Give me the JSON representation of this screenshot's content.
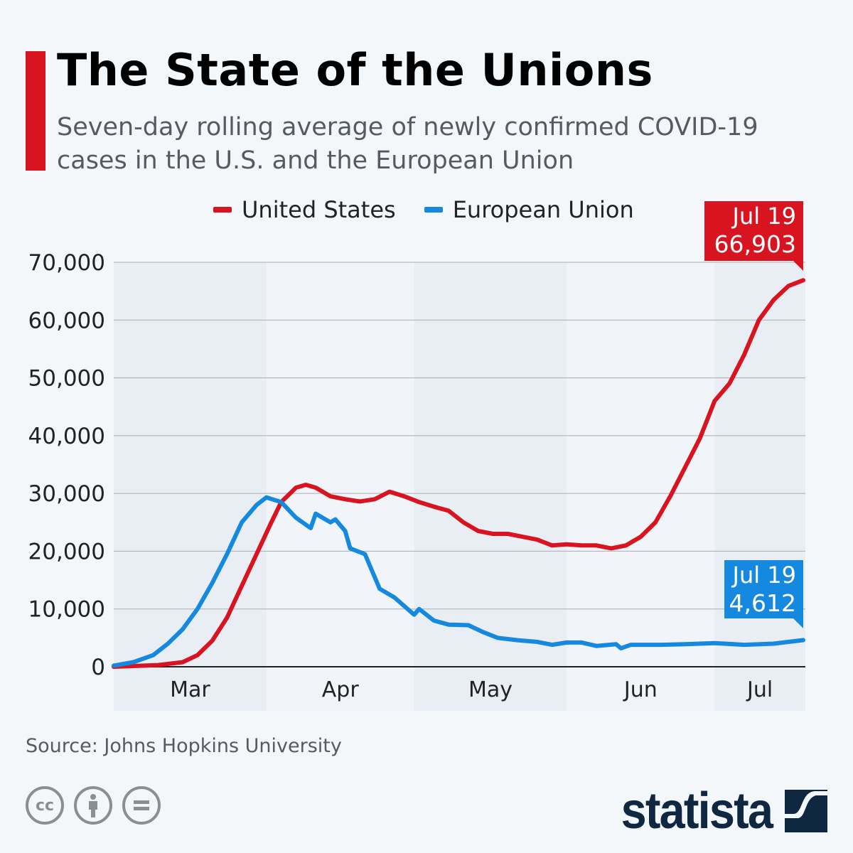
{
  "header": {
    "title": "The State of the Unions",
    "subtitle": "Seven-day rolling average of newly confirmed COVID-19 cases in the U.S. and the European Union"
  },
  "colors": {
    "accent": "#d7141f",
    "us": "#d7141f",
    "eu": "#1588e0",
    "logo": "#0f2740"
  },
  "chart_data": {
    "type": "line",
    "title": "The State of the Unions",
    "subtitle": "Seven-day rolling average of newly confirmed COVID-19 cases in the U.S. and the European Union",
    "ylim": [
      0,
      70000
    ],
    "yticks": [
      0,
      10000,
      20000,
      30000,
      40000,
      50000,
      60000,
      70000
    ],
    "ytick_labels": [
      "0",
      "10,000",
      "20,000",
      "30,000",
      "40,000",
      "50,000",
      "60,000",
      "70,000"
    ],
    "xlim": [
      "2020-03-01",
      "2020-07-19"
    ],
    "month_labels": [
      "Mar",
      "Apr",
      "May",
      "Jun",
      "Jul"
    ],
    "grid": true,
    "legend_position": "top",
    "series": [
      {
        "name": "United States",
        "color": "#d7141f",
        "points": [
          [
            "2020-03-01",
            0
          ],
          [
            "2020-03-10",
            300
          ],
          [
            "2020-03-15",
            800
          ],
          [
            "2020-03-18",
            2000
          ],
          [
            "2020-03-21",
            4500
          ],
          [
            "2020-03-24",
            8500
          ],
          [
            "2020-03-27",
            14000
          ],
          [
            "2020-03-30",
            19500
          ],
          [
            "2020-04-02",
            25000
          ],
          [
            "2020-04-04",
            28500
          ],
          [
            "2020-04-07",
            31000
          ],
          [
            "2020-04-09",
            31500
          ],
          [
            "2020-04-11",
            31000
          ],
          [
            "2020-04-14",
            29500
          ],
          [
            "2020-04-17",
            29000
          ],
          [
            "2020-04-20",
            28600
          ],
          [
            "2020-04-23",
            29000
          ],
          [
            "2020-04-26",
            30300
          ],
          [
            "2020-04-29",
            29500
          ],
          [
            "2020-05-02",
            28500
          ],
          [
            "2020-05-05",
            27700
          ],
          [
            "2020-05-08",
            27000
          ],
          [
            "2020-05-11",
            25000
          ],
          [
            "2020-05-14",
            23500
          ],
          [
            "2020-05-17",
            23000
          ],
          [
            "2020-05-20",
            23000
          ],
          [
            "2020-05-23",
            22500
          ],
          [
            "2020-05-26",
            22000
          ],
          [
            "2020-05-29",
            21000
          ],
          [
            "2020-06-01",
            21200
          ],
          [
            "2020-06-04",
            21000
          ],
          [
            "2020-06-07",
            21000
          ],
          [
            "2020-06-10",
            20500
          ],
          [
            "2020-06-13",
            21000
          ],
          [
            "2020-06-16",
            22500
          ],
          [
            "2020-06-19",
            25000
          ],
          [
            "2020-06-22",
            29500
          ],
          [
            "2020-06-25",
            34500
          ],
          [
            "2020-06-28",
            39500
          ],
          [
            "2020-07-01",
            46000
          ],
          [
            "2020-07-04",
            49000
          ],
          [
            "2020-07-07",
            54000
          ],
          [
            "2020-07-10",
            60000
          ],
          [
            "2020-07-13",
            63500
          ],
          [
            "2020-07-16",
            65900
          ],
          [
            "2020-07-19",
            66903
          ]
        ]
      },
      {
        "name": "European Union",
        "color": "#1588e0",
        "points": [
          [
            "2020-03-01",
            200
          ],
          [
            "2020-03-05",
            800
          ],
          [
            "2020-03-09",
            2000
          ],
          [
            "2020-03-12",
            4000
          ],
          [
            "2020-03-15",
            6500
          ],
          [
            "2020-03-18",
            10000
          ],
          [
            "2020-03-21",
            14500
          ],
          [
            "2020-03-24",
            19500
          ],
          [
            "2020-03-27",
            25000
          ],
          [
            "2020-03-30",
            28000
          ],
          [
            "2020-04-01",
            29300
          ],
          [
            "2020-04-04",
            28500
          ],
          [
            "2020-04-07",
            25800
          ],
          [
            "2020-04-10",
            24000
          ],
          [
            "2020-04-11",
            26500
          ],
          [
            "2020-04-14",
            25000
          ],
          [
            "2020-04-15",
            25500
          ],
          [
            "2020-04-17",
            23500
          ],
          [
            "2020-04-18",
            20500
          ],
          [
            "2020-04-21",
            19500
          ],
          [
            "2020-04-24",
            13500
          ],
          [
            "2020-04-27",
            12000
          ],
          [
            "2020-05-01",
            9000
          ],
          [
            "2020-05-02",
            10000
          ],
          [
            "2020-05-05",
            8000
          ],
          [
            "2020-05-08",
            7300
          ],
          [
            "2020-05-12",
            7200
          ],
          [
            "2020-05-15",
            6000
          ],
          [
            "2020-05-18",
            5000
          ],
          [
            "2020-05-22",
            4600
          ],
          [
            "2020-05-26",
            4300
          ],
          [
            "2020-05-29",
            3800
          ],
          [
            "2020-06-01",
            4200
          ],
          [
            "2020-06-04",
            4200
          ],
          [
            "2020-06-07",
            3600
          ],
          [
            "2020-06-11",
            3900
          ],
          [
            "2020-06-12",
            3200
          ],
          [
            "2020-06-14",
            3800
          ],
          [
            "2020-06-20",
            3800
          ],
          [
            "2020-06-25",
            3900
          ],
          [
            "2020-07-01",
            4100
          ],
          [
            "2020-07-07",
            3800
          ],
          [
            "2020-07-13",
            4000
          ],
          [
            "2020-07-19",
            4612
          ]
        ]
      }
    ],
    "annotations": [
      {
        "series": "United States",
        "date_label": "Jul 19",
        "value_label": "66,903"
      },
      {
        "series": "European Union",
        "date_label": "Jul 19",
        "value_label": "4,612"
      }
    ]
  },
  "footer": {
    "source": "Source: Johns Hopkins University",
    "license_icons": [
      "cc-icon",
      "attribution-icon",
      "no-derivatives-icon"
    ],
    "logo_text": "statista"
  }
}
